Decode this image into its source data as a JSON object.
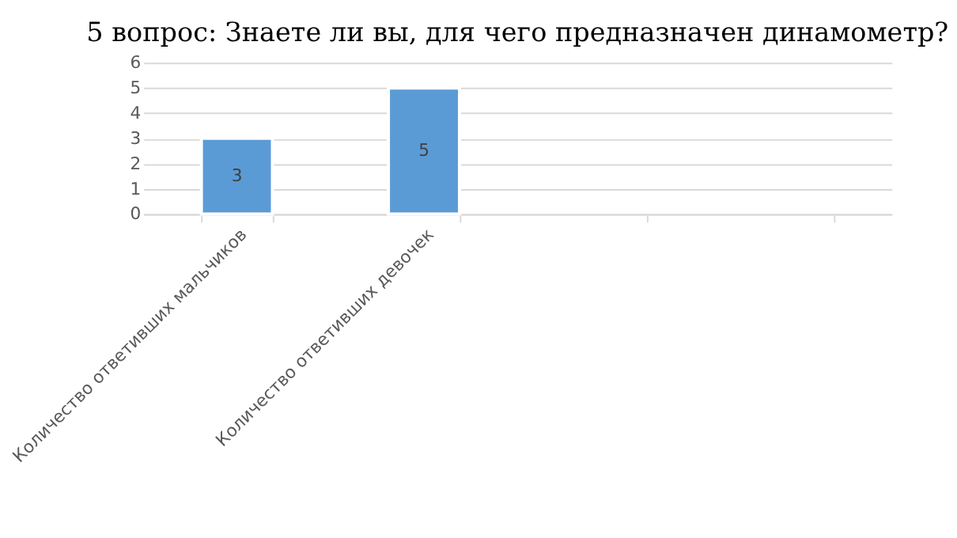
{
  "chart_data": {
    "type": "bar",
    "title": "5 вопрос: Знаете ли вы, для чего предназначен динамометр?",
    "categories": [
      "Количество ответивших мальчиков",
      "Количество ответивших девочек",
      null,
      null
    ],
    "values": [
      3,
      5,
      null,
      null
    ],
    "color": "#5b9bd5",
    "ylim": [
      0,
      6
    ],
    "yticks": [
      0,
      1,
      2,
      3,
      4,
      5,
      6
    ],
    "grid": "y",
    "data_labels": true
  }
}
